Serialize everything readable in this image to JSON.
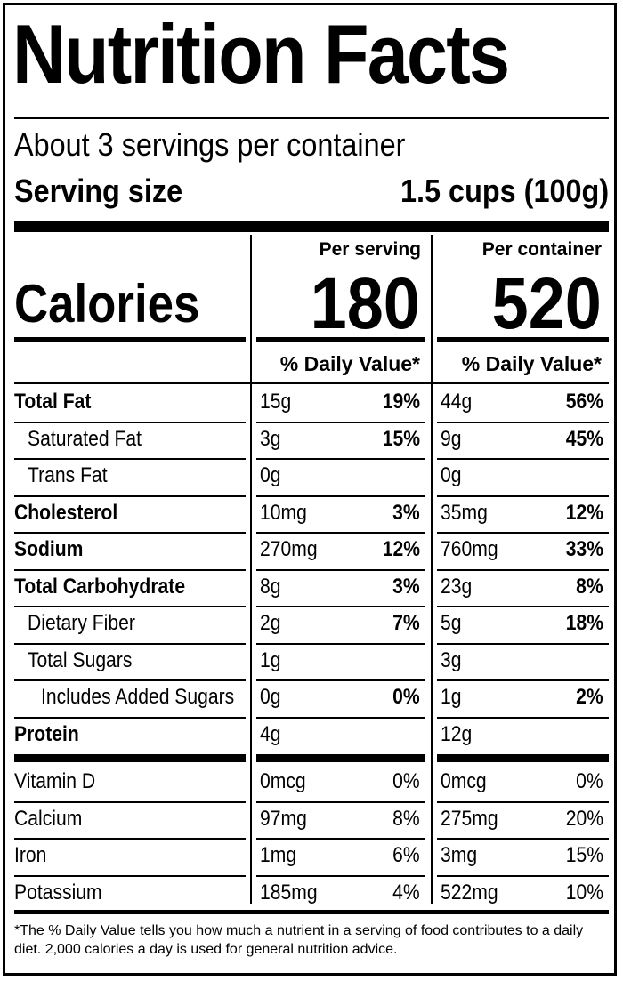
{
  "title": "Nutrition Facts",
  "servings_per_container": "About 3 servings per container",
  "serving_size": {
    "label": "Serving size",
    "value": "1.5 cups (100g)"
  },
  "columns": [
    {
      "header": "Per serving",
      "calories": "180",
      "dv_header": "% Daily Value*"
    },
    {
      "header": "Per container",
      "calories": "520",
      "dv_header": "% Daily Value*"
    }
  ],
  "calories_label": "Calories",
  "nutrients": [
    {
      "label": "Total Fat",
      "bold": true,
      "indent": 0,
      "values": [
        {
          "amount": "15g",
          "dv": "19%"
        },
        {
          "amount": "44g",
          "dv": "56%"
        }
      ]
    },
    {
      "label": "Saturated Fat",
      "bold": false,
      "indent": 1,
      "values": [
        {
          "amount": "3g",
          "dv": "15%"
        },
        {
          "amount": "9g",
          "dv": "45%"
        }
      ]
    },
    {
      "label": "Trans Fat",
      "bold": false,
      "indent": 1,
      "values": [
        {
          "amount": "0g",
          "dv": ""
        },
        {
          "amount": "0g",
          "dv": ""
        }
      ]
    },
    {
      "label": "Cholesterol",
      "bold": true,
      "indent": 0,
      "values": [
        {
          "amount": "10mg",
          "dv": "3%"
        },
        {
          "amount": "35mg",
          "dv": "12%"
        }
      ]
    },
    {
      "label": "Sodium",
      "bold": true,
      "indent": 0,
      "values": [
        {
          "amount": "270mg",
          "dv": "12%"
        },
        {
          "amount": "760mg",
          "dv": "33%"
        }
      ]
    },
    {
      "label": "Total Carbohydrate",
      "bold": true,
      "indent": 0,
      "values": [
        {
          "amount": "8g",
          "dv": "3%"
        },
        {
          "amount": "23g",
          "dv": "8%"
        }
      ]
    },
    {
      "label": "Dietary Fiber",
      "bold": false,
      "indent": 1,
      "values": [
        {
          "amount": "2g",
          "dv": "7%"
        },
        {
          "amount": "5g",
          "dv": "18%"
        }
      ]
    },
    {
      "label": "Total Sugars",
      "bold": false,
      "indent": 1,
      "values": [
        {
          "amount": "1g",
          "dv": ""
        },
        {
          "amount": "3g",
          "dv": ""
        }
      ]
    },
    {
      "label": "Includes Added Sugars",
      "bold": false,
      "indent": 2,
      "values": [
        {
          "amount": "0g",
          "dv": "0%"
        },
        {
          "amount": "1g",
          "dv": "2%"
        }
      ]
    },
    {
      "label": "Protein",
      "bold": true,
      "indent": 0,
      "values": [
        {
          "amount": "4g",
          "dv": ""
        },
        {
          "amount": "12g",
          "dv": ""
        }
      ]
    }
  ],
  "vitamins": [
    {
      "label": "Vitamin D",
      "values": [
        {
          "amount": "0mcg",
          "dv": "0%"
        },
        {
          "amount": "0mcg",
          "dv": "0%"
        }
      ]
    },
    {
      "label": "Calcium",
      "values": [
        {
          "amount": "97mg",
          "dv": "8%"
        },
        {
          "amount": "275mg",
          "dv": "20%"
        }
      ]
    },
    {
      "label": "Iron",
      "values": [
        {
          "amount": "1mg",
          "dv": "6%"
        },
        {
          "amount": "3mg",
          "dv": "15%"
        }
      ]
    },
    {
      "label": "Potassium",
      "values": [
        {
          "amount": "185mg",
          "dv": "4%"
        },
        {
          "amount": "522mg",
          "dv": "10%"
        }
      ]
    }
  ],
  "footnote": "*The % Daily Value tells you how much a nutrient in a serving of food contributes to a daily diet. 2,000 calories a day is used for general nutrition advice."
}
